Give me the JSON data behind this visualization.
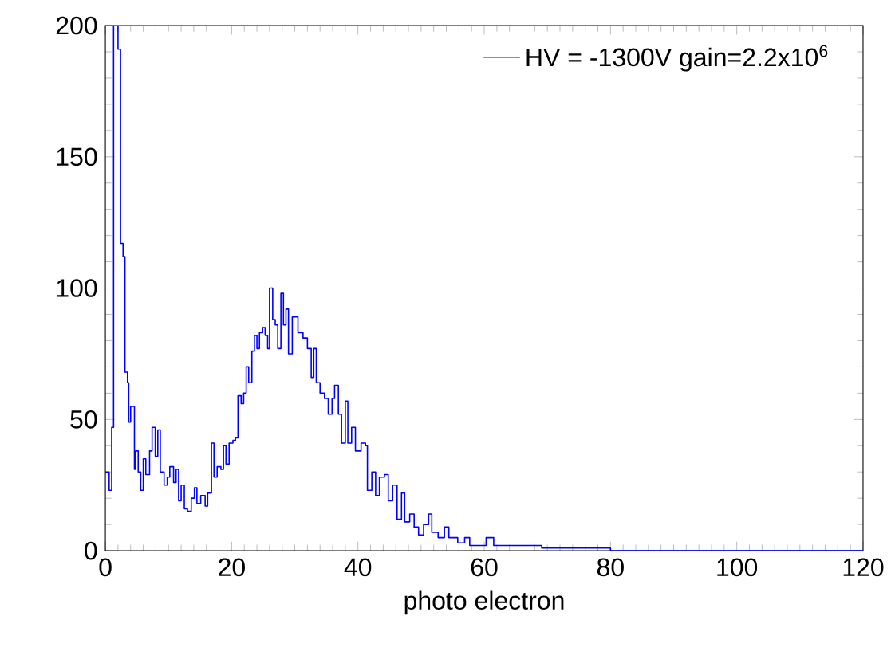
{
  "chart_data": {
    "type": "step",
    "xlabel": "photo electron",
    "xlim": [
      0,
      120
    ],
    "ylim": [
      0,
      200
    ],
    "xticks": [
      0,
      20,
      40,
      60,
      80,
      100,
      120
    ],
    "yticks": [
      0,
      50,
      100,
      150,
      200
    ],
    "grid": false,
    "legend": "top right",
    "series": [
      {
        "name": "HV = -1300V  gain=2.2x10$^{6}$",
        "color": "#0000ff",
        "x": [
          0,
          0.6,
          1.0,
          1.3,
          2.0,
          2.4,
          2.8,
          3.1,
          3.5,
          3.7,
          4.0,
          4.6,
          4.8,
          5.2,
          5.6,
          6.0,
          6.4,
          7.0,
          7.4,
          7.9,
          8.3,
          8.7,
          9.3,
          9.8,
          10.2,
          10.8,
          11.2,
          11.6,
          12.0,
          12.5,
          13.0,
          13.6,
          14.1,
          14.5,
          15.1,
          15.8,
          16.2,
          16.8,
          17.2,
          17.7,
          18.3,
          18.7,
          19.1,
          19.6,
          20.2,
          20.6,
          21.0,
          21.5,
          21.9,
          22.3,
          22.7,
          23.2,
          23.6,
          24.0,
          24.4,
          24.9,
          25.3,
          25.7,
          26.0,
          26.5,
          26.9,
          27.3,
          27.8,
          28.2,
          28.6,
          29.0,
          29.6,
          30.5,
          31.3,
          32.0,
          32.6,
          33.0,
          33.4,
          34.0,
          34.7,
          35.3,
          35.9,
          36.3,
          36.9,
          37.4,
          38.0,
          38.4,
          39.0,
          39.6,
          40.5,
          41.2,
          41.5,
          42.2,
          42.8,
          43.4,
          44.2,
          44.8,
          45.5,
          46.2,
          46.9,
          47.4,
          48.2,
          48.9,
          49.6,
          50.4,
          51.2,
          51.7,
          52.7,
          53.7,
          54.4,
          55.2,
          55.8,
          56.9,
          57.7,
          60.3,
          61.5,
          64.1,
          66.6,
          69.1,
          75,
          80,
          120
        ],
        "values": [
          30,
          23,
          47,
          200,
          191,
          117,
          112,
          68,
          64,
          49,
          55,
          31,
          38,
          30,
          23,
          35,
          29,
          38,
          47,
          36,
          46,
          30,
          25,
          28,
          32,
          26,
          31,
          19,
          25,
          16,
          15,
          20,
          24,
          18,
          21,
          17,
          22,
          41,
          28,
          32,
          31,
          40,
          33,
          41,
          42,
          43,
          59,
          56,
          60,
          70,
          64,
          76,
          82,
          77,
          83,
          85,
          82,
          77,
          100,
          88,
          86,
          77,
          98,
          86,
          92,
          75,
          89,
          83,
          81,
          77,
          66,
          77,
          64,
          60,
          58,
          52,
          58,
          63,
          52,
          41,
          57,
          41,
          47,
          38,
          41,
          40,
          23,
          30,
          21,
          28,
          29,
          19,
          25,
          12,
          22,
          11,
          14,
          9,
          6,
          10,
          14,
          7,
          5,
          9,
          5,
          5,
          3,
          5,
          2,
          5,
          2,
          2,
          2,
          1,
          1,
          0,
          0
        ]
      }
    ]
  }
}
